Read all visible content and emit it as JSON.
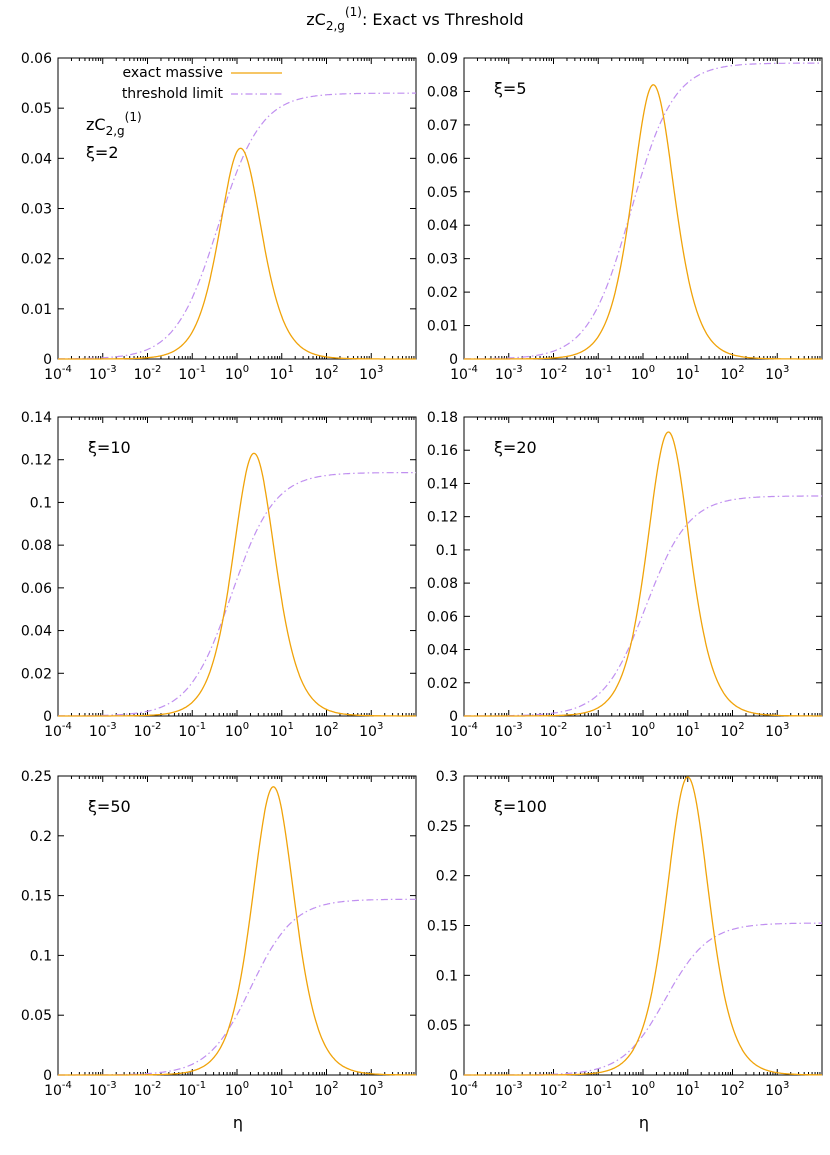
{
  "figure": {
    "title_prefix": "zC",
    "title_sub": "2,g",
    "title_sup": "(1)",
    "title_suffix": ": Exact vs Threshold",
    "xlabel": "η"
  },
  "legend": {
    "exact": "exact massive",
    "threshold": "threshold limit"
  },
  "colors": {
    "exact": "#f0a30a",
    "threshold": "#c08ff0"
  },
  "chart_data": [
    {
      "type": "line",
      "xi_label": "ξ=2",
      "show_quantity_label": true,
      "quantity_label": {
        "main": "zC",
        "sub": "2,g",
        "sup": "(1)"
      },
      "x_scale": "log",
      "xlim": [
        0.0001,
        10000
      ],
      "xticks": [
        "10-4",
        "10-3",
        "10-2",
        "10-1",
        "100",
        "101",
        "102",
        "103"
      ],
      "ylim": [
        0,
        0.06
      ],
      "yticks": [
        "0",
        "0.01",
        "0.02",
        "0.03",
        "0.04",
        "0.05",
        "0.06"
      ],
      "series": [
        {
          "name": "exact massive",
          "peak_x": 1.2,
          "peak_y": 0.042
        },
        {
          "name": "threshold limit",
          "asymptote": 0.053
        }
      ]
    },
    {
      "type": "line",
      "xi_label": "ξ=5",
      "show_quantity_label": false,
      "x_scale": "log",
      "xlim": [
        0.0001,
        10000
      ],
      "xticks": [
        "10-4",
        "10-3",
        "10-2",
        "10-1",
        "100",
        "101",
        "102",
        "103"
      ],
      "ylim": [
        0,
        0.09
      ],
      "yticks": [
        "0",
        "0.01",
        "0.02",
        "0.03",
        "0.04",
        "0.05",
        "0.06",
        "0.07",
        "0.08",
        "0.09"
      ],
      "series": [
        {
          "name": "exact massive",
          "peak_x": 1.7,
          "peak_y": 0.082
        },
        {
          "name": "threshold limit",
          "asymptote": 0.0885
        }
      ]
    },
    {
      "type": "line",
      "xi_label": "ξ=10",
      "show_quantity_label": false,
      "x_scale": "log",
      "xlim": [
        0.0001,
        10000
      ],
      "xticks": [
        "10-4",
        "10-3",
        "10-2",
        "10-1",
        "100",
        "101",
        "102",
        "103"
      ],
      "ylim": [
        0,
        0.14
      ],
      "yticks": [
        "0",
        "0.02",
        "0.04",
        "0.06",
        "0.08",
        "0.1",
        "0.12",
        "0.14"
      ],
      "series": [
        {
          "name": "exact massive",
          "peak_x": 2.4,
          "peak_y": 0.123
        },
        {
          "name": "threshold limit",
          "asymptote": 0.114
        }
      ]
    },
    {
      "type": "line",
      "xi_label": "ξ=20",
      "show_quantity_label": false,
      "x_scale": "log",
      "xlim": [
        0.0001,
        10000
      ],
      "xticks": [
        "10-4",
        "10-3",
        "10-2",
        "10-1",
        "100",
        "101",
        "102",
        "103"
      ],
      "ylim": [
        0,
        0.18
      ],
      "yticks": [
        "0",
        "0.02",
        "0.04",
        "0.06",
        "0.08",
        "0.1",
        "0.12",
        "0.14",
        "0.16",
        "0.18"
      ],
      "series": [
        {
          "name": "exact massive",
          "peak_x": 3.7,
          "peak_y": 0.171
        },
        {
          "name": "threshold limit",
          "asymptote": 0.1325
        }
      ]
    },
    {
      "type": "line",
      "xi_label": "ξ=50",
      "show_quantity_label": false,
      "x_scale": "log",
      "xlim": [
        0.0001,
        10000
      ],
      "xticks": [
        "10-4",
        "10-3",
        "10-2",
        "10-1",
        "100",
        "101",
        "102",
        "103"
      ],
      "ylim": [
        0,
        0.25
      ],
      "yticks": [
        "0",
        "0.05",
        "0.1",
        "0.15",
        "0.2",
        "0.25"
      ],
      "series": [
        {
          "name": "exact massive",
          "peak_x": 6.5,
          "peak_y": 0.241
        },
        {
          "name": "threshold limit",
          "asymptote": 0.147
        }
      ]
    },
    {
      "type": "line",
      "xi_label": "ξ=100",
      "show_quantity_label": false,
      "x_scale": "log",
      "xlim": [
        0.0001,
        10000
      ],
      "xticks": [
        "10-4",
        "10-3",
        "10-2",
        "10-1",
        "100",
        "101",
        "102",
        "103"
      ],
      "ylim": [
        0,
        0.3
      ],
      "yticks": [
        "0",
        "0.05",
        "0.1",
        "0.15",
        "0.2",
        "0.25",
        "0.3"
      ],
      "series": [
        {
          "name": "exact massive",
          "peak_x": 10,
          "peak_y": 0.299
        },
        {
          "name": "threshold limit",
          "asymptote": 0.1525
        }
      ]
    }
  ]
}
